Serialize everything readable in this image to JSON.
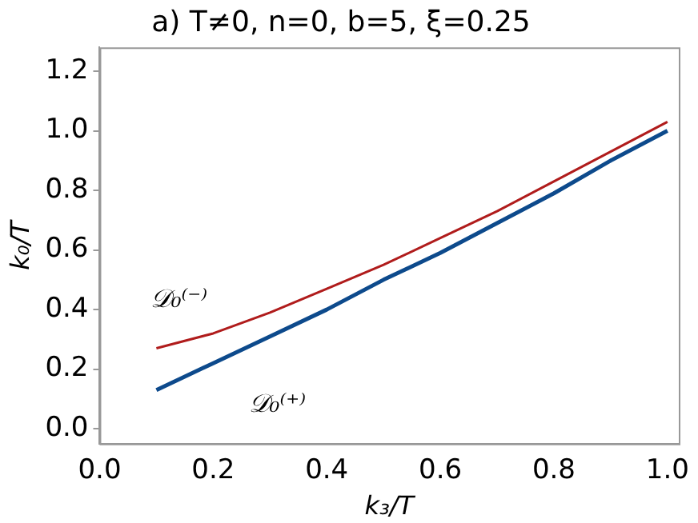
{
  "chart_data": {
    "type": "line",
    "title": "a) T≠0, n=0, b=5, ξ=0.25",
    "xlabel": "k₃/T",
    "ylabel": "k₀/T",
    "x": [
      0.1,
      0.2,
      0.3,
      0.4,
      0.5,
      0.6,
      0.7,
      0.8,
      0.9,
      1.0
    ],
    "series": [
      {
        "name": "𝒟₀⁽⁻⁾",
        "color": "#b01c1c",
        "values": [
          0.27,
          0.32,
          0.39,
          0.47,
          0.55,
          0.64,
          0.73,
          0.83,
          0.93,
          1.03
        ]
      },
      {
        "name": "𝒟₀⁽⁺⁾",
        "color": "#0d4a8c",
        "values": [
          0.13,
          0.22,
          0.31,
          0.4,
          0.5,
          0.59,
          0.69,
          0.79,
          0.9,
          1.0
        ]
      }
    ],
    "xlim": [
      0,
      1.02
    ],
    "ylim": [
      -0.05,
      1.28
    ],
    "xticks": [
      {
        "value": 0,
        "label": "0.0"
      },
      {
        "value": 0.2,
        "label": "0.2"
      },
      {
        "value": 0.4,
        "label": "0.4"
      },
      {
        "value": 0.6,
        "label": "0.6"
      },
      {
        "value": 0.8,
        "label": "0.8"
      },
      {
        "value": 1,
        "label": "1.0"
      }
    ],
    "yticks": [
      {
        "value": 0,
        "label": "0.0"
      },
      {
        "value": 0.2,
        "label": "0.2"
      },
      {
        "value": 0.4,
        "label": "0.4"
      },
      {
        "value": 0.6,
        "label": "0.6"
      },
      {
        "value": 0.8,
        "label": "0.8"
      },
      {
        "value": 1,
        "label": "1.0"
      },
      {
        "value": 1.2,
        "label": "1.2"
      }
    ],
    "grid": false,
    "legend": false,
    "marker": "none",
    "line_style": "solid"
  }
}
